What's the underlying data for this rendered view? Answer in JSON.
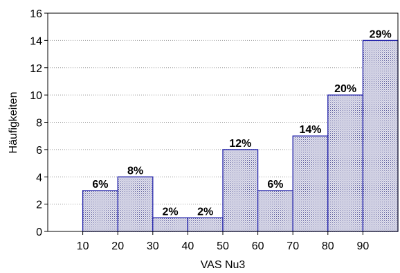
{
  "chart_data": {
    "type": "bar",
    "xlabel": "VAS Nu3",
    "ylabel": "Häufigkeiten",
    "x_tick_labels": [
      "10",
      "20",
      "30",
      "40",
      "50",
      "60",
      "70",
      "80",
      "90"
    ],
    "x_range": [
      0,
      100
    ],
    "bins": [
      {
        "start": 10,
        "end": 20,
        "value": 3,
        "label": "6%"
      },
      {
        "start": 20,
        "end": 30,
        "value": 4,
        "label": "8%"
      },
      {
        "start": 30,
        "end": 40,
        "value": 1,
        "label": "2%"
      },
      {
        "start": 40,
        "end": 50,
        "value": 1,
        "label": "2%"
      },
      {
        "start": 50,
        "end": 60,
        "value": 6,
        "label": "12%"
      },
      {
        "start": 60,
        "end": 70,
        "value": 3,
        "label": "6%"
      },
      {
        "start": 70,
        "end": 80,
        "value": 7,
        "label": "14%"
      },
      {
        "start": 80,
        "end": 90,
        "value": 10,
        "label": "20%"
      },
      {
        "start": 90,
        "end": 100,
        "value": 14,
        "label": "29%"
      }
    ],
    "ylim": [
      0,
      16
    ],
    "y_ticks": [
      0,
      2,
      4,
      6,
      8,
      10,
      12,
      14,
      16
    ],
    "grid": true,
    "bar_fill": "#c8c8dc",
    "bar_edge": "#2222aa"
  }
}
